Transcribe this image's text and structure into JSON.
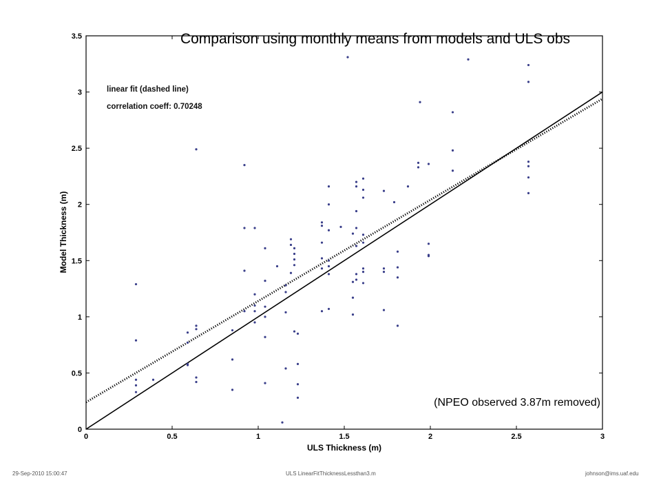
{
  "footer": {
    "left": "29-Sep-2010 15:00:47",
    "center": "ULS LinearFitThicknessLessthan3.m",
    "right": "johnson@ims.uaf.edu"
  },
  "chart_data": {
    "type": "scatter",
    "title": "Comparison using monthly means from models and ULS obs",
    "xlabel": "ULS Thickness (m)",
    "ylabel": "Model Thickness (m)",
    "xlim": [
      0,
      3
    ],
    "ylim": [
      0,
      3.5
    ],
    "xticks": [
      "0",
      "0.5",
      "1",
      "1.5",
      "2",
      "2.5",
      "3"
    ],
    "yticks": [
      "0",
      "0.5",
      "1",
      "1.5",
      "2",
      "2.5",
      "3",
      "3.5"
    ],
    "legend": {
      "line1": "linear fit (dashed line)",
      "line2": "correlation coeff: 0.70248"
    },
    "annotation": "(NPEO observed 3.87m removed)",
    "lines": [
      {
        "style": "solid",
        "x": [
          0,
          3
        ],
        "y": [
          0,
          3
        ]
      },
      {
        "style": "dashed",
        "x": [
          0,
          3
        ],
        "y": [
          0.24,
          2.94
        ]
      }
    ],
    "colors": {
      "points": "#3a3f8a",
      "lines": "#000000"
    },
    "points": [
      [
        0.29,
        1.29
      ],
      [
        0.29,
        0.79
      ],
      [
        0.29,
        0.44
      ],
      [
        0.29,
        0.39
      ],
      [
        0.29,
        0.33
      ],
      [
        0.39,
        0.44
      ],
      [
        0.59,
        0.86
      ],
      [
        0.59,
        0.77
      ],
      [
        0.59,
        0.58
      ],
      [
        0.59,
        0.57
      ],
      [
        0.64,
        2.49
      ],
      [
        0.64,
        0.92
      ],
      [
        0.64,
        0.89
      ],
      [
        0.64,
        0.46
      ],
      [
        0.64,
        0.42
      ],
      [
        0.85,
        0.88
      ],
      [
        0.85,
        0.62
      ],
      [
        0.85,
        0.35
      ],
      [
        0.92,
        2.35
      ],
      [
        0.92,
        1.79
      ],
      [
        0.92,
        1.41
      ],
      [
        0.92,
        1.05
      ],
      [
        0.98,
        1.79
      ],
      [
        0.98,
        1.2
      ],
      [
        0.98,
        1.1
      ],
      [
        0.98,
        1.05
      ],
      [
        0.98,
        0.95
      ],
      [
        1.04,
        1.61
      ],
      [
        1.04,
        1.32
      ],
      [
        1.04,
        1.09
      ],
      [
        1.04,
        1.0
      ],
      [
        1.04,
        0.82
      ],
      [
        1.04,
        0.41
      ],
      [
        1.11,
        1.45
      ],
      [
        1.14,
        0.06
      ],
      [
        1.16,
        1.28
      ],
      [
        1.16,
        1.22
      ],
      [
        1.16,
        1.04
      ],
      [
        1.16,
        0.54
      ],
      [
        1.19,
        1.69
      ],
      [
        1.19,
        1.64
      ],
      [
        1.19,
        1.39
      ],
      [
        1.21,
        1.61
      ],
      [
        1.21,
        1.56
      ],
      [
        1.21,
        1.51
      ],
      [
        1.21,
        1.46
      ],
      [
        1.21,
        0.87
      ],
      [
        1.23,
        0.85
      ],
      [
        1.23,
        0.58
      ],
      [
        1.23,
        0.4
      ],
      [
        1.23,
        0.28
      ],
      [
        1.37,
        1.84
      ],
      [
        1.37,
        1.81
      ],
      [
        1.37,
        1.66
      ],
      [
        1.37,
        1.52
      ],
      [
        1.37,
        1.43
      ],
      [
        1.37,
        1.05
      ],
      [
        1.41,
        2.16
      ],
      [
        1.41,
        2.0
      ],
      [
        1.41,
        1.77
      ],
      [
        1.41,
        1.5
      ],
      [
        1.41,
        1.45
      ],
      [
        1.41,
        1.38
      ],
      [
        1.41,
        1.07
      ],
      [
        1.48,
        1.8
      ],
      [
        1.52,
        3.31
      ],
      [
        1.55,
        1.74
      ],
      [
        1.55,
        1.31
      ],
      [
        1.55,
        1.17
      ],
      [
        1.55,
        1.02
      ],
      [
        1.57,
        2.2
      ],
      [
        1.57,
        2.16
      ],
      [
        1.57,
        1.94
      ],
      [
        1.57,
        1.79
      ],
      [
        1.57,
        1.63
      ],
      [
        1.57,
        1.38
      ],
      [
        1.57,
        1.33
      ],
      [
        1.61,
        2.23
      ],
      [
        1.61,
        2.13
      ],
      [
        1.61,
        2.06
      ],
      [
        1.61,
        1.73
      ],
      [
        1.61,
        1.66
      ],
      [
        1.61,
        1.43
      ],
      [
        1.61,
        1.4
      ],
      [
        1.61,
        1.3
      ],
      [
        1.73,
        2.12
      ],
      [
        1.73,
        1.43
      ],
      [
        1.73,
        1.4
      ],
      [
        1.73,
        1.06
      ],
      [
        1.79,
        2.02
      ],
      [
        1.81,
        1.58
      ],
      [
        1.81,
        1.44
      ],
      [
        1.81,
        1.35
      ],
      [
        1.81,
        0.92
      ],
      [
        1.87,
        2.16
      ],
      [
        1.93,
        2.37
      ],
      [
        1.93,
        2.33
      ],
      [
        1.94,
        2.91
      ],
      [
        1.99,
        2.36
      ],
      [
        1.99,
        1.65
      ],
      [
        1.99,
        1.55
      ],
      [
        1.99,
        1.54
      ],
      [
        2.13,
        2.82
      ],
      [
        2.13,
        2.48
      ],
      [
        2.13,
        2.3
      ],
      [
        2.22,
        3.29
      ],
      [
        2.57,
        3.24
      ],
      [
        2.57,
        3.09
      ],
      [
        2.57,
        2.38
      ],
      [
        2.57,
        2.34
      ],
      [
        2.57,
        2.24
      ],
      [
        2.57,
        2.1
      ]
    ]
  }
}
